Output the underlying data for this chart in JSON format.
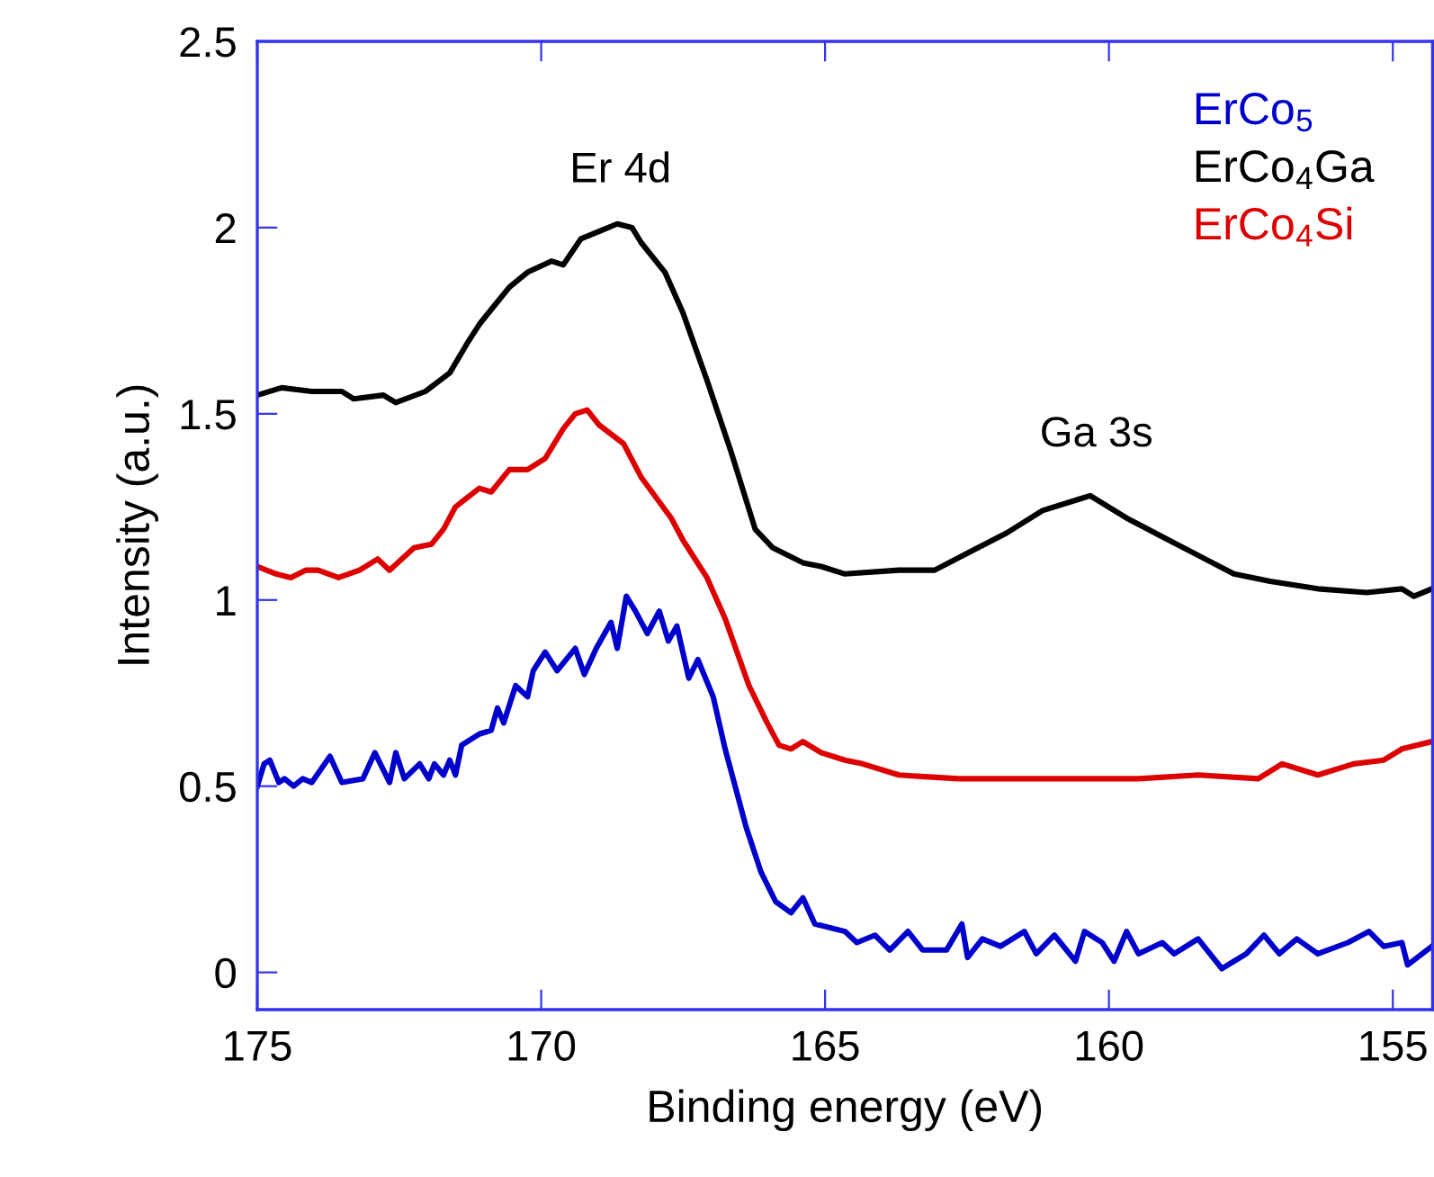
{
  "chart_data": {
    "type": "line",
    "xlabel": "Binding energy (eV)",
    "ylabel": "Intensity (a.u.)",
    "xlim": [
      175,
      154.3
    ],
    "xticks": [
      175,
      170,
      165,
      160,
      155
    ],
    "ylim": [
      -0.1,
      2.5
    ],
    "yticks": [
      0,
      0.5,
      1,
      1.5,
      2,
      2.5
    ],
    "grid": false,
    "legend": "top right",
    "marker": "none",
    "line_style": "solid",
    "annotations": [
      "Er 4d",
      "Ga 3s"
    ],
    "series": [
      {
        "name": "ErCo$_{5}$",
        "color": "#0000cc",
        "x": [
          175.0,
          174.88,
          174.78,
          174.62,
          174.52,
          174.36,
          174.2,
          174.04,
          173.72,
          173.51,
          173.14,
          172.93,
          172.67,
          172.56,
          172.41,
          172.14,
          171.98,
          171.88,
          171.72,
          171.61,
          171.51,
          171.4,
          171.09,
          170.88,
          170.77,
          170.66,
          170.45,
          170.24,
          170.14,
          169.93,
          169.72,
          169.4,
          169.24,
          169.03,
          168.77,
          168.66,
          168.5,
          168.34,
          168.13,
          167.92,
          167.76,
          167.61,
          167.4,
          167.24,
          166.97,
          166.76,
          166.39,
          166.13,
          165.87,
          165.6,
          165.39,
          165.18,
          164.65,
          164.44,
          164.12,
          163.86,
          163.54,
          163.28,
          162.86,
          162.59,
          162.49,
          162.23,
          161.91,
          161.49,
          161.28,
          160.96,
          160.59,
          160.43,
          160.12,
          159.91,
          159.69,
          159.48,
          159.06,
          158.85,
          158.43,
          158.01,
          157.58,
          157.27,
          157.0,
          156.69,
          156.32,
          155.79,
          155.42,
          155.16,
          154.84,
          154.74,
          154.31
        ],
        "values": [
          0.5,
          0.56,
          0.57,
          0.51,
          0.52,
          0.5,
          0.52,
          0.51,
          0.58,
          0.51,
          0.52,
          0.59,
          0.51,
          0.59,
          0.52,
          0.56,
          0.52,
          0.56,
          0.53,
          0.57,
          0.53,
          0.61,
          0.64,
          0.65,
          0.71,
          0.67,
          0.77,
          0.74,
          0.81,
          0.86,
          0.81,
          0.87,
          0.8,
          0.87,
          0.94,
          0.87,
          1.01,
          0.97,
          0.91,
          0.97,
          0.89,
          0.93,
          0.79,
          0.84,
          0.74,
          0.6,
          0.39,
          0.27,
          0.19,
          0.16,
          0.2,
          0.13,
          0.11,
          0.08,
          0.1,
          0.06,
          0.11,
          0.06,
          0.06,
          0.13,
          0.04,
          0.09,
          0.07,
          0.11,
          0.05,
          0.1,
          0.03,
          0.11,
          0.08,
          0.03,
          0.11,
          0.05,
          0.08,
          0.05,
          0.09,
          0.01,
          0.05,
          0.1,
          0.05,
          0.09,
          0.05,
          0.08,
          0.11,
          0.07,
          0.08,
          0.02,
          0.07
        ]
      },
      {
        "name": "ErCo$_{4}$Ga",
        "color": "#000000",
        "x": [
          175.0,
          174.57,
          174.04,
          173.51,
          173.3,
          172.78,
          172.56,
          172.04,
          171.61,
          171.3,
          171.09,
          170.88,
          170.56,
          170.24,
          169.82,
          169.61,
          169.3,
          168.98,
          168.66,
          168.4,
          168.24,
          167.82,
          167.5,
          167.08,
          166.66,
          166.23,
          165.92,
          165.39,
          165.07,
          164.65,
          163.7,
          163.07,
          162.44,
          161.8,
          161.17,
          160.54,
          160.33,
          159.69,
          159.06,
          158.43,
          157.8,
          157.16,
          156.32,
          155.46,
          154.84,
          154.63,
          154.31
        ],
        "values": [
          1.55,
          1.57,
          1.56,
          1.56,
          1.54,
          1.55,
          1.53,
          1.56,
          1.61,
          1.69,
          1.74,
          1.78,
          1.84,
          1.88,
          1.91,
          1.9,
          1.97,
          1.99,
          2.01,
          2.0,
          1.96,
          1.88,
          1.77,
          1.59,
          1.4,
          1.19,
          1.14,
          1.1,
          1.09,
          1.07,
          1.08,
          1.08,
          1.13,
          1.18,
          1.24,
          1.27,
          1.28,
          1.22,
          1.17,
          1.12,
          1.07,
          1.05,
          1.03,
          1.02,
          1.03,
          1.01,
          1.03
        ]
      },
      {
        "name": "ErCo$_{4}$Si",
        "color": "#dd0000",
        "x": [
          175.0,
          174.67,
          174.41,
          174.15,
          173.93,
          173.57,
          173.2,
          172.88,
          172.67,
          172.24,
          171.93,
          171.72,
          171.51,
          171.09,
          170.88,
          170.56,
          170.24,
          169.93,
          169.61,
          169.4,
          169.19,
          168.98,
          168.55,
          168.24,
          167.71,
          167.5,
          167.08,
          166.76,
          166.34,
          166.02,
          165.81,
          165.6,
          165.39,
          165.07,
          164.65,
          164.34,
          163.7,
          162.65,
          161.59,
          160.54,
          159.48,
          158.43,
          157.37,
          156.95,
          156.32,
          155.69,
          155.16,
          154.84,
          154.31
        ],
        "values": [
          1.09,
          1.07,
          1.06,
          1.08,
          1.08,
          1.06,
          1.08,
          1.11,
          1.08,
          1.14,
          1.15,
          1.19,
          1.25,
          1.3,
          1.29,
          1.35,
          1.35,
          1.38,
          1.46,
          1.5,
          1.51,
          1.47,
          1.42,
          1.33,
          1.22,
          1.16,
          1.06,
          0.95,
          0.77,
          0.67,
          0.61,
          0.6,
          0.62,
          0.59,
          0.57,
          0.56,
          0.53,
          0.52,
          0.52,
          0.52,
          0.52,
          0.53,
          0.52,
          0.56,
          0.53,
          0.56,
          0.57,
          0.6,
          0.62
        ]
      }
    ]
  }
}
